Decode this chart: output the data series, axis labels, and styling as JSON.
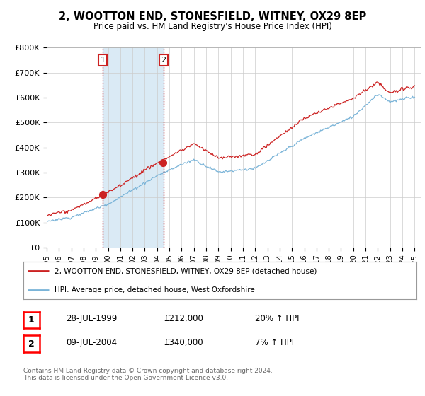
{
  "title": "2, WOOTTON END, STONESFIELD, WITNEY, OX29 8EP",
  "subtitle": "Price paid vs. HM Land Registry's House Price Index (HPI)",
  "ylim": [
    0,
    800000
  ],
  "yticks": [
    0,
    100000,
    200000,
    300000,
    400000,
    500000,
    600000,
    700000,
    800000
  ],
  "ytick_labels": [
    "£0",
    "£100K",
    "£200K",
    "£300K",
    "£400K",
    "£500K",
    "£600K",
    "£700K",
    "£800K"
  ],
  "hpi_color": "#7ab4d8",
  "price_color": "#cc2222",
  "shade_color": "#daeaf5",
  "sale1_year": 1999.565,
  "sale1_price": 212000,
  "sale2_year": 2004.527,
  "sale2_price": 340000,
  "legend_label_price": "2, WOOTTON END, STONESFIELD, WITNEY, OX29 8EP (detached house)",
  "legend_label_hpi": "HPI: Average price, detached house, West Oxfordshire",
  "table_rows": [
    {
      "marker": "1",
      "date": "28-JUL-1999",
      "price": "£212,000",
      "change": "20% ↑ HPI"
    },
    {
      "marker": "2",
      "date": "09-JUL-2004",
      "price": "£340,000",
      "change": "7% ↑ HPI"
    }
  ],
  "footer": "Contains HM Land Registry data © Crown copyright and database right 2024.\nThis data is licensed under the Open Government Licence v3.0.",
  "background_color": "#ffffff",
  "grid_color": "#cccccc"
}
